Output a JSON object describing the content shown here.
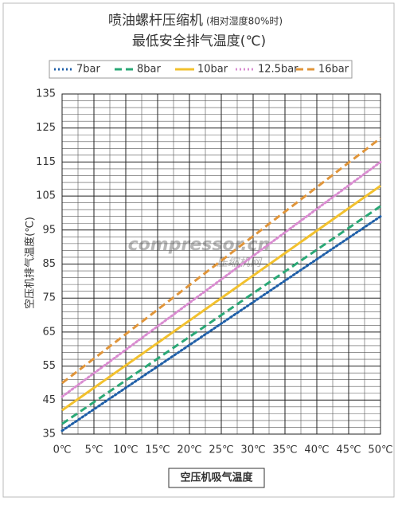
{
  "chart_data": {
    "type": "line",
    "title": "喷油螺杆压缩机",
    "title_note": "(相对湿度80%时)",
    "subtitle": "最低安全排气温度(℃)",
    "x_label": "空压机吸气温度",
    "y_label": "空压机排气温度(℃)",
    "watermark": [
      "compressor.cn",
      "压缩机网"
    ],
    "x": [
      0,
      50
    ],
    "xlim": [
      0,
      50
    ],
    "xticks": [
      {
        "value": 0,
        "label": "0℃"
      },
      {
        "value": 5,
        "label": "5℃"
      },
      {
        "value": 10,
        "label": "10℃"
      },
      {
        "value": 15,
        "label": "15℃"
      },
      {
        "value": 20,
        "label": "20℃"
      },
      {
        "value": 25,
        "label": "25℃"
      },
      {
        "value": 30,
        "label": "30℃"
      },
      {
        "value": 35,
        "label": "35℃"
      },
      {
        "value": 40,
        "label": "40℃"
      },
      {
        "value": 45,
        "label": "45℃"
      },
      {
        "value": 50,
        "label": "50℃"
      }
    ],
    "ylim": [
      35,
      135
    ],
    "yticks": [
      35,
      45,
      55,
      65,
      75,
      85,
      95,
      105,
      115,
      125,
      135
    ],
    "grid": true,
    "legend": "top",
    "series": [
      {
        "name": "7bar",
        "color": "#1f5fa8",
        "style": "dotted",
        "values": [
          36,
          99
        ]
      },
      {
        "name": "8bar",
        "color": "#2aa876",
        "style": "dashed",
        "values": [
          38,
          102
        ]
      },
      {
        "name": "10bar",
        "color": "#f2c12e",
        "style": "solid",
        "values": [
          42,
          108
        ]
      },
      {
        "name": "12.5bar",
        "color": "#d98bd0",
        "style": "dotted",
        "values": [
          46,
          115
        ]
      },
      {
        "name": "16bar",
        "color": "#e0953a",
        "style": "dashed",
        "values": [
          50,
          122
        ]
      }
    ]
  }
}
